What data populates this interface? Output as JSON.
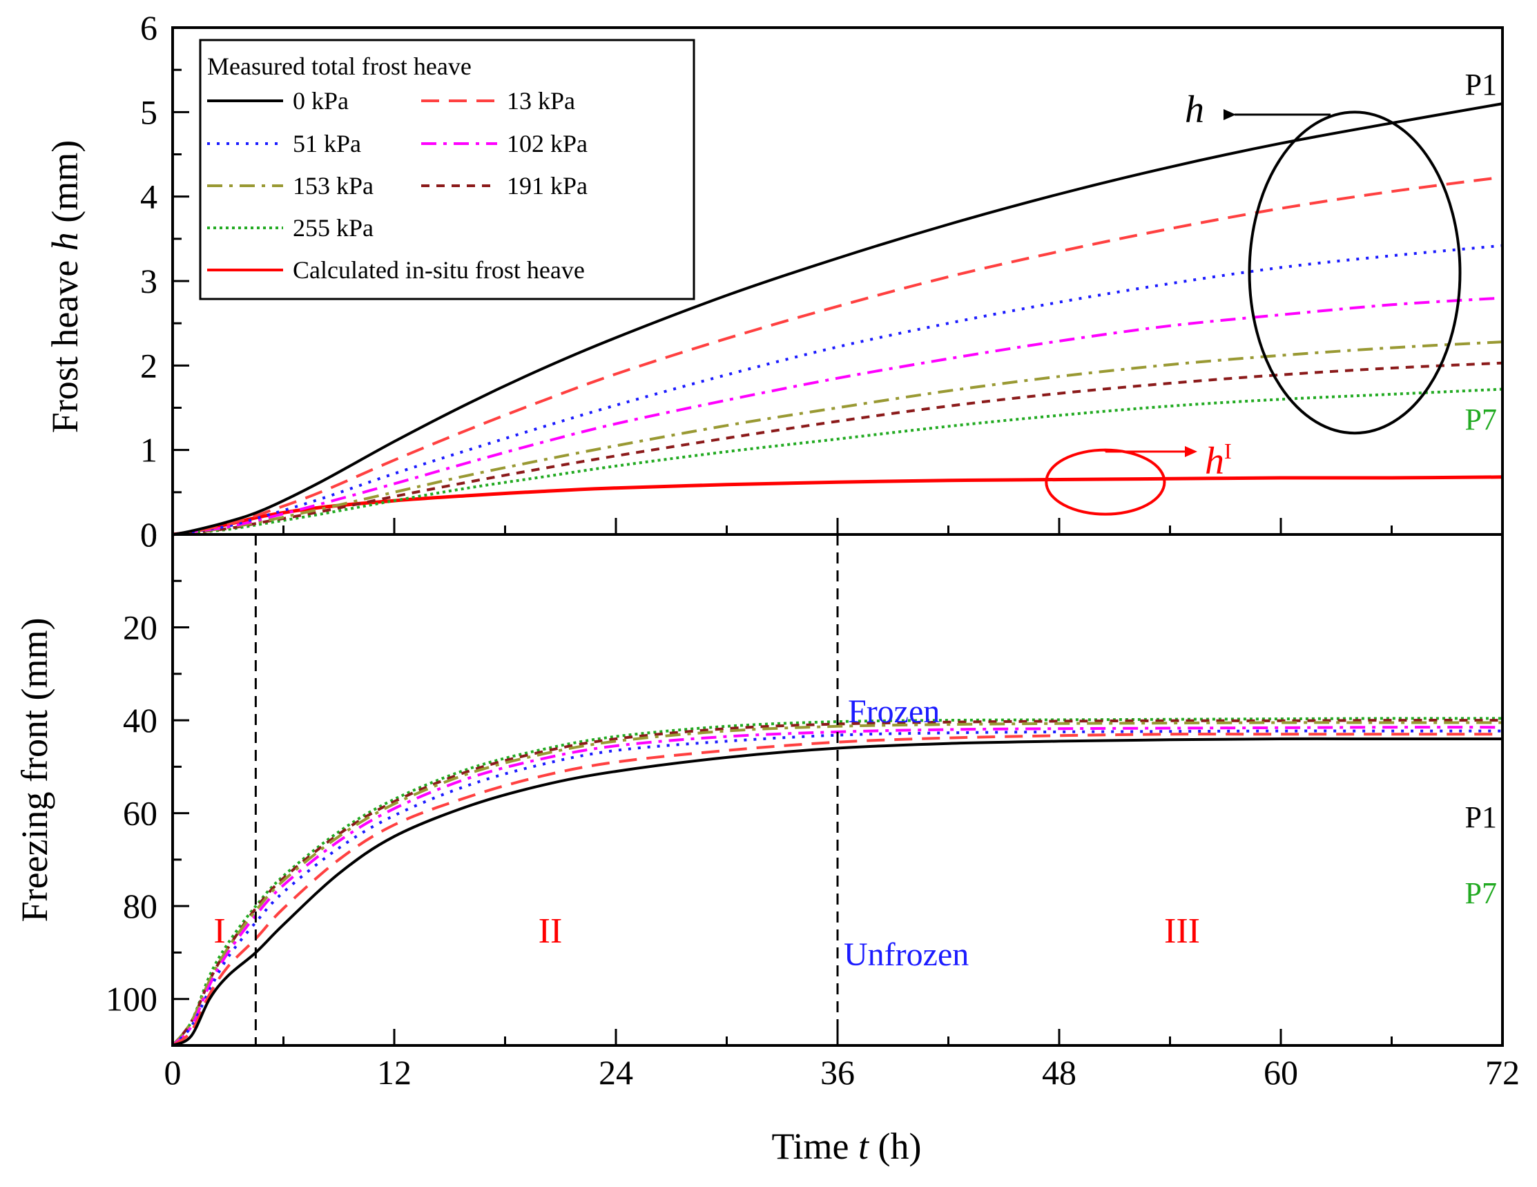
{
  "chart_data": [
    {
      "panel": "top",
      "type": "line",
      "ylabel_prefix": "Frost heave ",
      "ylabel_var": "h",
      "ylabel_suffix": " (mm)",
      "xlim": [
        0,
        72
      ],
      "ylim": [
        0,
        6
      ],
      "yticks": [
        "0",
        "1",
        "2",
        "3",
        "4",
        "5",
        "6"
      ],
      "legend": {
        "title": "Measured total frost heave",
        "position": "top-left",
        "entries": [
          {
            "label": "0 kPa",
            "series": "0 kPa"
          },
          {
            "label": "13 kPa",
            "series": "13 kPa"
          },
          {
            "label": "51 kPa",
            "series": "51 kPa"
          },
          {
            "label": "102 kPa",
            "series": "102 kPa"
          },
          {
            "label": "153 kPa",
            "series": "153 kPa"
          },
          {
            "label": "191 kPa",
            "series": "191 kPa"
          },
          {
            "label": "255 kPa",
            "series": "255 kPa"
          },
          {
            "label": "Calculated in-situ frost heave",
            "series": "Calculated in-situ frost heave"
          }
        ]
      },
      "x": [
        0,
        1,
        3,
        5,
        8,
        12,
        16,
        20,
        24,
        30,
        36,
        42,
        48,
        54,
        60,
        66,
        72
      ],
      "series": [
        {
          "name": "0 kPa",
          "color": "#000000",
          "dash": "solid",
          "values": [
            0,
            0.04,
            0.15,
            0.3,
            0.62,
            1.1,
            1.55,
            1.96,
            2.33,
            2.83,
            3.27,
            3.67,
            4.03,
            4.35,
            4.63,
            4.87,
            5.1
          ]
        },
        {
          "name": "13 kPa",
          "color": "#ff4040",
          "dash": "dash",
          "values": [
            0,
            0.03,
            0.12,
            0.26,
            0.5,
            0.88,
            1.24,
            1.58,
            1.9,
            2.32,
            2.7,
            3.05,
            3.35,
            3.62,
            3.86,
            4.06,
            4.23
          ]
        },
        {
          "name": "51 kPa",
          "color": "#1a1aff",
          "dash": "dot",
          "values": [
            0,
            0.03,
            0.1,
            0.22,
            0.42,
            0.72,
            1.0,
            1.27,
            1.53,
            1.89,
            2.22,
            2.5,
            2.75,
            2.97,
            3.16,
            3.3,
            3.42
          ]
        },
        {
          "name": "102 kPa",
          "color": "#ff00ff",
          "dash": "dashdot",
          "values": [
            0,
            0.03,
            0.09,
            0.19,
            0.36,
            0.6,
            0.85,
            1.09,
            1.31,
            1.59,
            1.85,
            2.08,
            2.29,
            2.47,
            2.6,
            2.72,
            2.8
          ]
        },
        {
          "name": "153 kPa",
          "color": "#999933",
          "dash": "dashdot",
          "values": [
            0,
            0.02,
            0.08,
            0.16,
            0.3,
            0.5,
            0.7,
            0.88,
            1.05,
            1.29,
            1.5,
            1.7,
            1.87,
            2.01,
            2.12,
            2.21,
            2.28
          ]
        },
        {
          "name": "191 kPa",
          "color": "#8b1a1a",
          "dash": "shortdash",
          "values": [
            0,
            0.02,
            0.07,
            0.15,
            0.27,
            0.45,
            0.62,
            0.78,
            0.93,
            1.14,
            1.34,
            1.52,
            1.67,
            1.79,
            1.89,
            1.97,
            2.03
          ]
        },
        {
          "name": "255 kPa",
          "color": "#22aa22",
          "dash": "densedot",
          "values": [
            0,
            0.02,
            0.06,
            0.13,
            0.24,
            0.4,
            0.55,
            0.68,
            0.81,
            0.98,
            1.13,
            1.28,
            1.41,
            1.52,
            1.6,
            1.66,
            1.72
          ]
        },
        {
          "name": "Calculated in-situ frost heave",
          "color": "#ff0000",
          "dash": "solid",
          "values": [
            0,
            0.03,
            0.12,
            0.22,
            0.32,
            0.4,
            0.46,
            0.51,
            0.55,
            0.59,
            0.62,
            0.64,
            0.65,
            0.66,
            0.67,
            0.67,
            0.68
          ]
        }
      ],
      "annotations": {
        "p1": "P1",
        "p7": "P7",
        "h_label": "h",
        "h1_label": "h",
        "h1_superscript": "I",
        "ellipse_center": [
          64,
          3.1
        ],
        "ellipse_radius": [
          5.7,
          1.9
        ],
        "circle_center": [
          50.5,
          0.62
        ],
        "circle_radius": [
          3.2,
          0.38
        ]
      }
    },
    {
      "panel": "bottom",
      "type": "line",
      "ylabel": "Freezing front (mm)",
      "xlabel_prefix": "Time ",
      "xlabel_var": "t",
      "xlabel_suffix": " (h)",
      "xlim": [
        0,
        72
      ],
      "ylim": [
        0,
        110
      ],
      "yticks": [
        "0",
        "20",
        "40",
        "60",
        "80",
        "100"
      ],
      "xticks": [
        "0",
        "12",
        "24",
        "36",
        "48",
        "60",
        "72"
      ],
      "stage_boundaries": [
        4.5,
        36
      ],
      "stages": [
        "I",
        "II",
        "III"
      ],
      "zone_labels": {
        "frozen": "Frozen",
        "unfrozen": "Unfrozen"
      },
      "x": [
        0,
        1,
        2,
        3,
        4.5,
        6,
        9,
        12,
        16,
        20,
        24,
        30,
        36,
        42,
        48,
        54,
        60,
        66,
        72
      ],
      "series": [
        {
          "name": "0 kPa",
          "color": "#000000",
          "dash": "solid",
          "values": [
            110,
            108,
            100,
            95,
            90,
            84,
            73,
            65,
            58.5,
            54,
            51,
            48,
            46,
            45,
            44.5,
            44.2,
            44,
            44,
            44
          ]
        },
        {
          "name": "13 kPa",
          "color": "#ff4040",
          "dash": "dash",
          "values": [
            110,
            107,
            99,
            93,
            87,
            80.5,
            70,
            62.5,
            56.5,
            52,
            49,
            46.5,
            44.7,
            43.8,
            43.3,
            43,
            43,
            43,
            43
          ]
        },
        {
          "name": "51 kPa",
          "color": "#1a1aff",
          "dash": "dot",
          "values": [
            110,
            106,
            98,
            91,
            83.5,
            77,
            67.5,
            60.5,
            54,
            49.5,
            46.5,
            44.5,
            43.2,
            42.7,
            42.5,
            42.4,
            42.3,
            42.3,
            42.3
          ]
        },
        {
          "name": "102 kPa",
          "color": "#ff00ff",
          "dash": "dashdot",
          "values": [
            110,
            106,
            97,
            90,
            82,
            75.5,
            66,
            59,
            52.5,
            48.3,
            45.5,
            43.5,
            42.5,
            42,
            41.8,
            41.7,
            41.6,
            41.5,
            41.5
          ]
        },
        {
          "name": "153 kPa",
          "color": "#999933",
          "dash": "dashdot",
          "values": [
            110,
            105,
            96,
            89,
            81,
            74.5,
            65,
            58,
            51.5,
            47.3,
            44.5,
            42.3,
            41.3,
            40.9,
            40.7,
            40.6,
            40.5,
            40.5,
            40.5
          ]
        },
        {
          "name": "191 kPa",
          "color": "#8b1a1a",
          "dash": "shortdash",
          "values": [
            110,
            105,
            96,
            89,
            80.5,
            74,
            64.5,
            57.5,
            51,
            46.8,
            44,
            41.8,
            40.8,
            40.4,
            40.2,
            40.1,
            40.1,
            40,
            40
          ]
        },
        {
          "name": "255 kPa",
          "color": "#22aa22",
          "dash": "densedot",
          "values": [
            110,
            105,
            95,
            88,
            80,
            73.5,
            64,
            57,
            50.5,
            46.3,
            43.5,
            41.3,
            40.3,
            40,
            39.9,
            39.8,
            39.7,
            39.6,
            39.6
          ]
        }
      ],
      "annotations": {
        "p1": "P1",
        "p7": "P7"
      }
    }
  ]
}
